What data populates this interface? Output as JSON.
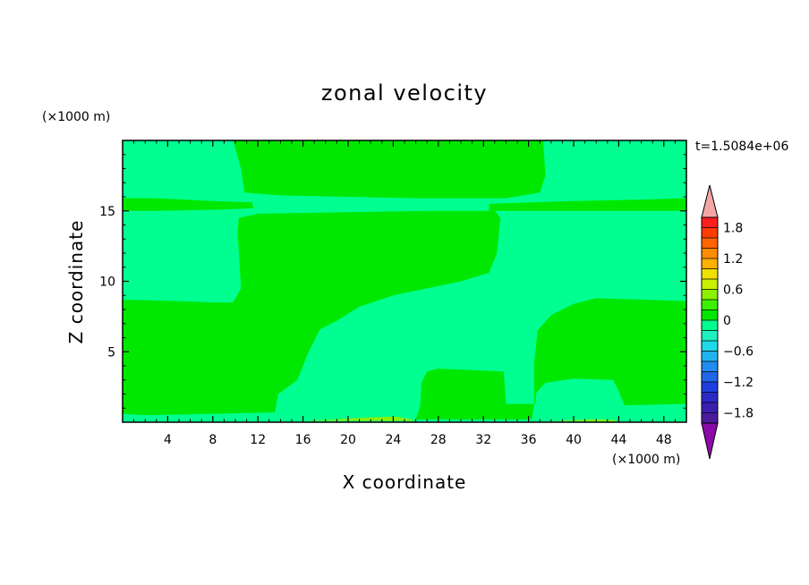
{
  "chart_data": {
    "type": "heatmap",
    "title": "zonal velocity",
    "xlabel": "X coordinate",
    "ylabel": "Z coordinate",
    "x_unit": "(×1000 m)",
    "y_unit": "(×1000 m)",
    "time_label": "t=1.5084e+06",
    "xlim": [
      0,
      50
    ],
    "ylim": [
      0,
      20
    ],
    "x_ticks": [
      4,
      8,
      12,
      16,
      20,
      24,
      28,
      32,
      36,
      40,
      44,
      48
    ],
    "y_ticks": [
      5,
      10,
      15
    ],
    "colorbar": {
      "levels": [
        -2.0,
        -1.8,
        -1.6,
        -1.4,
        -1.2,
        -1.0,
        -0.8,
        -0.6,
        -0.4,
        -0.2,
        0.0,
        0.2,
        0.4,
        0.6,
        0.8,
        1.0,
        1.2,
        1.4,
        1.6,
        1.8,
        2.0
      ],
      "colors": [
        "#4a1a9a",
        "#3a20b0",
        "#2a2ac8",
        "#1f3ee0",
        "#1f66e8",
        "#1f8cf0",
        "#1fb4f0",
        "#1fd8e8",
        "#1ff0c0",
        "#00ff90",
        "#00e800",
        "#3cf000",
        "#8cf000",
        "#c8f000",
        "#f0e000",
        "#ffb000",
        "#ff8c00",
        "#ff6400",
        "#ff3c00",
        "#ff1e1e"
      ],
      "under_color": "#8b0aa8",
      "over_color": "#f4a6a6",
      "tick_labels": [
        "1.8",
        "1.2",
        "0.6",
        "0",
        "−0.6",
        "−1.2",
        "−1.8"
      ],
      "tick_values": [
        1.8,
        1.2,
        0.6,
        0.0,
        -0.6,
        -1.2,
        -1.8
      ]
    },
    "colors": {
      "weak_positive": "#00e800",
      "weak_negative": "#00ff90",
      "positive_light": "#8cf000"
    },
    "regions": [
      {
        "level": "weak_positive",
        "points": [
          [
            0,
            8.7
          ],
          [
            5,
            8.6
          ],
          [
            8,
            8.5
          ],
          [
            9.8,
            8.5
          ],
          [
            10.5,
            9.5
          ],
          [
            10.2,
            13.5
          ],
          [
            10.3,
            14.5
          ],
          [
            12,
            14.8
          ],
          [
            20,
            14.9
          ],
          [
            27,
            15
          ],
          [
            33,
            15
          ],
          [
            33.5,
            14.5
          ],
          [
            33.2,
            12
          ],
          [
            32.5,
            10.6
          ],
          [
            30,
            10
          ],
          [
            27,
            9.5
          ],
          [
            24,
            9
          ],
          [
            21,
            8.2
          ],
          [
            19,
            7.2
          ],
          [
            17.5,
            6.6
          ],
          [
            16.5,
            5
          ],
          [
            15.5,
            3
          ],
          [
            13.8,
            2
          ],
          [
            13.5,
            0.7
          ],
          [
            8,
            0.6
          ],
          [
            2,
            0.5
          ],
          [
            0,
            0.6
          ]
        ]
      },
      {
        "level": "weak_positive",
        "points": [
          [
            9.8,
            20
          ],
          [
            10.5,
            18
          ],
          [
            10.8,
            16.3
          ],
          [
            14,
            16.1
          ],
          [
            20,
            16
          ],
          [
            26,
            15.9
          ],
          [
            34,
            15.9
          ],
          [
            37,
            16.3
          ],
          [
            37.5,
            17.5
          ],
          [
            37.3,
            20
          ]
        ]
      },
      {
        "level": "weak_positive",
        "points": [
          [
            0,
            15.9
          ],
          [
            3,
            15.9
          ],
          [
            8,
            15.7
          ],
          [
            11.5,
            15.6
          ],
          [
            11.6,
            15.2
          ],
          [
            9,
            15.1
          ],
          [
            3,
            15
          ],
          [
            0,
            15
          ]
        ]
      },
      {
        "level": "weak_positive",
        "points": [
          [
            32.5,
            15.5
          ],
          [
            40,
            15.7
          ],
          [
            46,
            15.8
          ],
          [
            50,
            15.9
          ],
          [
            50,
            15
          ],
          [
            44,
            15
          ],
          [
            38,
            15
          ],
          [
            32.5,
            15
          ]
        ]
      },
      {
        "level": "weak_positive",
        "points": [
          [
            36.5,
            4.2
          ],
          [
            36.8,
            6.5
          ],
          [
            38,
            7.6
          ],
          [
            40,
            8.4
          ],
          [
            42,
            8.8
          ],
          [
            46,
            8.7
          ],
          [
            50,
            8.6
          ],
          [
            50,
            1.3
          ],
          [
            44.5,
            1.2
          ],
          [
            44,
            2.2
          ],
          [
            43.5,
            3
          ],
          [
            40,
            3.1
          ],
          [
            37.5,
            2.8
          ],
          [
            36.7,
            2.1
          ],
          [
            36.6,
            1.3
          ],
          [
            34,
            1.3
          ],
          [
            33.8,
            3.6
          ],
          [
            28,
            3.8
          ],
          [
            27,
            3.6
          ],
          [
            26.5,
            2.8
          ],
          [
            26.4,
            1.2
          ],
          [
            26,
            0.2
          ],
          [
            36.3,
            0.2
          ],
          [
            36.5,
            1.2
          ]
        ]
      },
      {
        "level": "positive_light",
        "points": [
          [
            16,
            0.1
          ],
          [
            19,
            0.2
          ],
          [
            21,
            0.3
          ],
          [
            24,
            0.4
          ],
          [
            25,
            0.3
          ],
          [
            26,
            0.1
          ]
        ]
      },
      {
        "level": "positive_light",
        "points": [
          [
            38,
            0.1
          ],
          [
            40,
            0.15
          ],
          [
            42,
            0.2
          ],
          [
            43.5,
            0.15
          ],
          [
            44,
            0.05
          ]
        ]
      }
    ]
  }
}
